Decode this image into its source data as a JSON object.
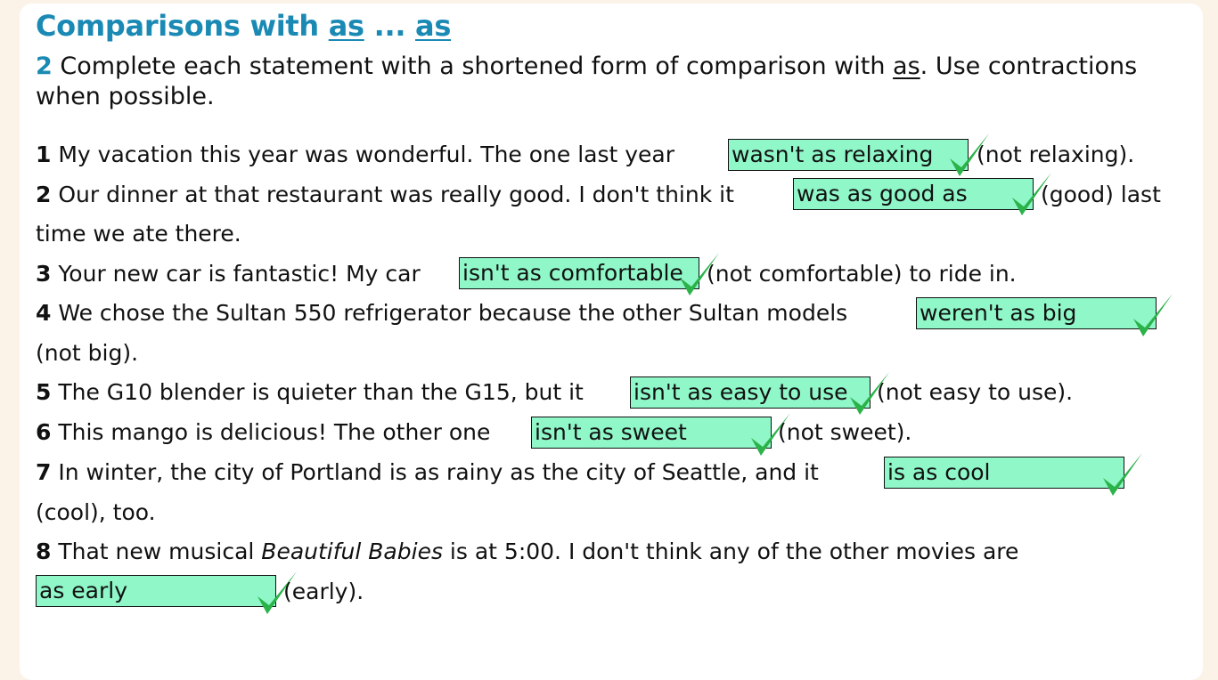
{
  "header": {
    "title_prefix": "Comparisons with ",
    "title_as1": "as",
    "title_mid": " ... ",
    "title_as2": "as"
  },
  "instructions": {
    "number": "2",
    "text_before": " Complete each statement with a shortened form of comparison with ",
    "as_word": "as",
    "text_after": ". Use contractions when possible."
  },
  "items": [
    {
      "num": "1",
      "before": " My vacation this year was wonderful. The one last year ",
      "answer": "wasn't as relaxing",
      "after": "(not relaxing)."
    },
    {
      "num": "2",
      "before": " Our dinner at that restaurant was really good. I don't think it ",
      "answer": "was as good as",
      "after": "(good) last",
      "cont": "time we ate there."
    },
    {
      "num": "3",
      "before": " Your new car is fantastic! My car ",
      "answer": "isn't as comfortable",
      "after": "(not comfortable) to ride in."
    },
    {
      "num": "4",
      "before": " We chose the Sultan 550 refrigerator because the other Sultan models ",
      "answer": "weren't as big",
      "cont": "(not big)."
    },
    {
      "num": "5",
      "before": " The G10 blender is quieter than the G15, but it ",
      "answer": "isn't as easy to use",
      "after": "(not easy to use)."
    },
    {
      "num": "6",
      "before": " This mango is delicious! The other one ",
      "answer": "isn't as sweet",
      "after": "(not sweet)."
    },
    {
      "num": "7",
      "before": " In winter, the city of Portland is as rainy as the city of Seattle, and it ",
      "answer": "is as cool",
      "cont": "(cool), too."
    },
    {
      "num": "8",
      "before": " That new musical ",
      "italic": "Beautiful Babies",
      "before2": " is at 5:00. I don't think any of the other movies are",
      "answer": "as early",
      "after": "(early)."
    }
  ],
  "colors": {
    "title": "#1a8ab4",
    "answer_fill": "#8ff7c8",
    "check": "#2bb34a",
    "background": "#fbf3e8"
  },
  "icons": {
    "correct": "checkmark-icon"
  }
}
